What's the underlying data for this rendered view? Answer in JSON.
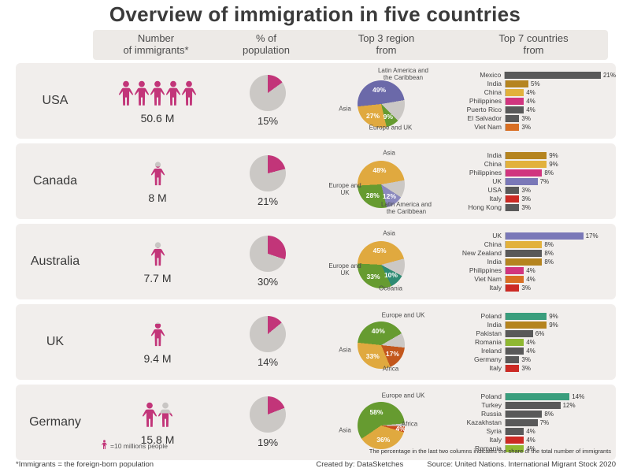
{
  "title": "Overview of immigration in five countries",
  "columns": [
    [
      "Number",
      "of immigrants*"
    ],
    [
      "% of",
      "population"
    ],
    [
      "Top 3 region",
      "from"
    ],
    [
      "Top 7 countries",
      "from"
    ]
  ],
  "legend": {
    "label": "=10 millions people"
  },
  "note": "The percentage in the last two columns indicates the share of the total number of immigrants",
  "footer": {
    "definition": "*Immigrants = the foreign-born population",
    "created_by": "Created by: DataSketches",
    "source": "Source: United Nations. International Migrant Stock 2020"
  },
  "colors": {
    "accent_pink": "#c23579",
    "icon_gray": "#c9c6c4",
    "pie_gray": "#cbc8c5",
    "row_bg": "#f1eeec"
  },
  "chart_data": {
    "type": "infographic",
    "rows": [
      {
        "country": "USA",
        "immigrants": {
          "label": "50.6 M",
          "icons": [
            1,
            1,
            1,
            1,
            1
          ]
        },
        "population_share": {
          "type": "pie",
          "pct": 15,
          "label": "15%"
        },
        "regions": {
          "type": "pie",
          "start_angle": -96,
          "slices": [
            {
              "name": "Latin America and the Caribbean",
              "pct": 49,
              "color": "#6b69a9",
              "label_side": "top-right"
            },
            {
              "name": "Other",
              "pct": 15,
              "color": "#cbc8c5"
            },
            {
              "name": "Europe and UK",
              "pct": 9,
              "color": "#669b30",
              "label_side": "bottom"
            },
            {
              "name": "Asia",
              "pct": 27,
              "color": "#e0a93f",
              "label_side": "left"
            }
          ]
        },
        "top_countries": {
          "type": "bar",
          "bars": [
            {
              "name": "Mexico",
              "pct": 21,
              "label": "21%",
              "color": "#595959"
            },
            {
              "name": "India",
              "pct": 5,
              "label": "5%",
              "color": "#b5841f"
            },
            {
              "name": "China",
              "pct": 4,
              "label": "4%",
              "color": "#e2b13c"
            },
            {
              "name": "Philippines",
              "pct": 4,
              "label": "4%",
              "color": "#d1357f"
            },
            {
              "name": "Puerto Rico",
              "pct": 4,
              "label": "4%",
              "color": "#595959"
            },
            {
              "name": "El Salvador",
              "pct": 3,
              "label": "3%",
              "color": "#595959"
            },
            {
              "name": "Viet Nam",
              "pct": 3,
              "label": "3%",
              "color": "#d96f23"
            }
          ]
        }
      },
      {
        "country": "Canada",
        "immigrants": {
          "label": "8 M",
          "icons": [
            0.8
          ]
        },
        "population_share": {
          "type": "pie",
          "pct": 21,
          "label": "21%"
        },
        "regions": {
          "type": "pie",
          "start_angle": -93,
          "slices": [
            {
              "name": "Asia",
              "pct": 48,
              "color": "#e0a93f",
              "label_side": "top"
            },
            {
              "name": "Other",
              "pct": 12,
              "color": "#cbc8c5"
            },
            {
              "name": "Latin America and the Caribbean",
              "pct": 12,
              "color": "#8a88bd",
              "label_side": "bottom-right"
            },
            {
              "name": "Europe and UK",
              "pct": 28,
              "color": "#669b30",
              "label_side": "left"
            }
          ]
        },
        "top_countries": {
          "type": "bar",
          "bars": [
            {
              "name": "India",
              "pct": 9,
              "label": "9%",
              "color": "#b5841f"
            },
            {
              "name": "China",
              "pct": 9,
              "label": "9%",
              "color": "#e2b13c"
            },
            {
              "name": "Philippines",
              "pct": 8,
              "label": "8%",
              "color": "#d1357f"
            },
            {
              "name": "UK",
              "pct": 7,
              "label": "7%",
              "color": "#7a78b8"
            },
            {
              "name": "USA",
              "pct": 3,
              "label": "3%",
              "color": "#595959"
            },
            {
              "name": "Italy",
              "pct": 3,
              "label": "3%",
              "color": "#cc2a24"
            },
            {
              "name": "Hong Kong",
              "pct": 3,
              "label": "3%",
              "color": "#595959"
            }
          ]
        }
      },
      {
        "country": "Australia",
        "immigrants": {
          "label": "7.7 M",
          "icons": [
            0.77
          ]
        },
        "population_share": {
          "type": "pie",
          "pct": 30,
          "label": "30%"
        },
        "regions": {
          "type": "pie",
          "start_angle": -87,
          "slices": [
            {
              "name": "Asia",
              "pct": 45,
              "color": "#e0a93f",
              "label_side": "top"
            },
            {
              "name": "Other",
              "pct": 12,
              "color": "#cbc8c5"
            },
            {
              "name": "Oceania",
              "pct": 10,
              "color": "#2e8b74",
              "label_side": "bottom"
            },
            {
              "name": "Europe and UK",
              "pct": 33,
              "color": "#669b30",
              "label_side": "left"
            }
          ]
        },
        "top_countries": {
          "type": "bar",
          "bars": [
            {
              "name": "UK",
              "pct": 17,
              "label": "17%",
              "color": "#7a78b8"
            },
            {
              "name": "China",
              "pct": 8,
              "label": "8%",
              "color": "#e2b13c"
            },
            {
              "name": "New Zealand",
              "pct": 8,
              "label": "8%",
              "color": "#595959"
            },
            {
              "name": "India",
              "pct": 8,
              "label": "8%",
              "color": "#b5841f"
            },
            {
              "name": "Philippines",
              "pct": 4,
              "label": "4%",
              "color": "#d1357f"
            },
            {
              "name": "Viet Nam",
              "pct": 4,
              "label": "4%",
              "color": "#d96f23"
            },
            {
              "name": "Italy",
              "pct": 3,
              "label": "3%",
              "color": "#cc2a24"
            }
          ]
        }
      },
      {
        "country": "UK",
        "immigrants": {
          "label": "9.4 M",
          "icons": [
            0.94
          ]
        },
        "population_share": {
          "type": "pie",
          "pct": 14,
          "label": "14%"
        },
        "regions": {
          "type": "pie",
          "start_angle": -84,
          "slices": [
            {
              "name": "Europe and UK",
              "pct": 40,
              "color": "#669b30",
              "label_side": "top-right"
            },
            {
              "name": "Other",
              "pct": 10,
              "color": "#cbc8c5"
            },
            {
              "name": "Africa",
              "pct": 17,
              "color": "#c3571c",
              "label_side": "bottom"
            },
            {
              "name": "Asia",
              "pct": 33,
              "color": "#e0a93f",
              "label_side": "left"
            }
          ]
        },
        "top_countries": {
          "type": "bar",
          "bars": [
            {
              "name": "Poland",
              "pct": 9,
              "label": "9%",
              "color": "#3a9e7d"
            },
            {
              "name": "India",
              "pct": 9,
              "label": "9%",
              "color": "#b5841f"
            },
            {
              "name": "Pakistan",
              "pct": 6,
              "label": "6%",
              "color": "#595959"
            },
            {
              "name": "Romania",
              "pct": 4,
              "label": "4%",
              "color": "#8fb832"
            },
            {
              "name": "Ireland",
              "pct": 4,
              "label": "4%",
              "color": "#595959"
            },
            {
              "name": "Germany",
              "pct": 3,
              "label": "3%",
              "color": "#595959"
            },
            {
              "name": "Italy",
              "pct": 3,
              "label": "3%",
              "color": "#cc2a24"
            }
          ]
        }
      },
      {
        "country": "Germany",
        "immigrants": {
          "label": "15.8 M",
          "icons": [
            1,
            0.58
          ]
        },
        "population_share": {
          "type": "pie",
          "pct": 19,
          "label": "19%"
        },
        "regions": {
          "type": "pie",
          "start_angle": -124,
          "slices": [
            {
              "name": "Europe and UK",
              "pct": 58,
              "color": "#669b30",
              "label_side": "top-right"
            },
            {
              "name": "Other",
              "pct": 2,
              "color": "#cbc8c5"
            },
            {
              "name": "Africa",
              "pct": 4,
              "color": "#c94a1e",
              "label_side": "right"
            },
            {
              "name": "Asia",
              "pct": 36,
              "color": "#e0a93f",
              "label_side": "left"
            }
          ]
        },
        "top_countries": {
          "type": "bar",
          "bars": [
            {
              "name": "Poland",
              "pct": 14,
              "label": "14%",
              "color": "#3a9e7d"
            },
            {
              "name": "Turkey",
              "pct": 12,
              "label": "12%",
              "color": "#595959"
            },
            {
              "name": "Russia",
              "pct": 8,
              "label": "8%",
              "color": "#595959"
            },
            {
              "name": "Kazakhstan",
              "pct": 7,
              "label": "7%",
              "color": "#595959"
            },
            {
              "name": "Syria",
              "pct": 4,
              "label": "4%",
              "color": "#595959"
            },
            {
              "name": "Italy",
              "pct": 4,
              "label": "4%",
              "color": "#cc2a24"
            },
            {
              "name": "Romania",
              "pct": 4,
              "label": "4%",
              "color": "#8fb832"
            }
          ]
        }
      }
    ]
  }
}
